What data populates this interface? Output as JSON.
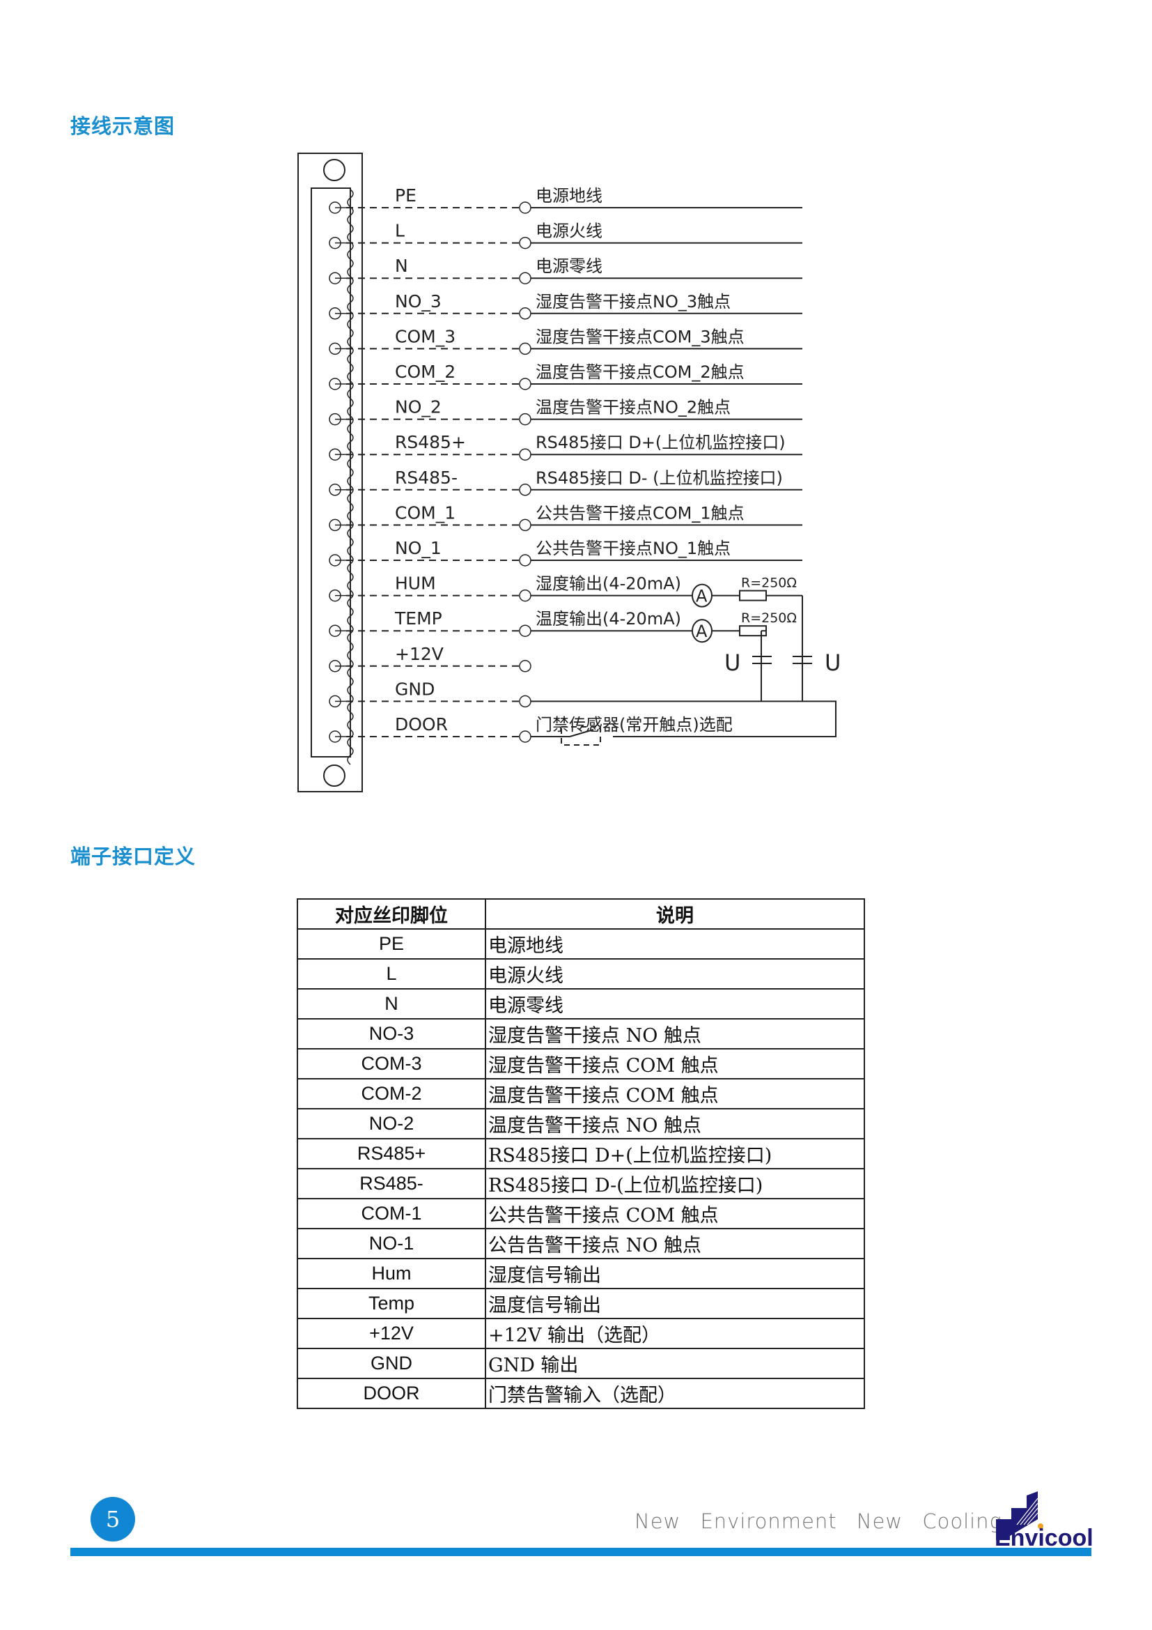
{
  "sections": {
    "wiring_title": "接线示意图",
    "table_title": "端子接口定义"
  },
  "diagram": {
    "pins": [
      {
        "pin": "PE",
        "desc": "电源地线"
      },
      {
        "pin": "L",
        "desc": "电源火线"
      },
      {
        "pin": "N",
        "desc": "电源零线"
      },
      {
        "pin": "NO_3",
        "desc": "湿度告警干接点NO_3触点"
      },
      {
        "pin": "COM_3",
        "desc": "湿度告警干接点COM_3触点"
      },
      {
        "pin": "COM_2",
        "desc": "温度告警干接点COM_2触点"
      },
      {
        "pin": "NO_2",
        "desc": "温度告警干接点NO_2触点"
      },
      {
        "pin": "RS485+",
        "desc": "RS485接口 D+(上位机监控接口)"
      },
      {
        "pin": "RS485-",
        "desc": "RS485接口 D- (上位机监控接口)"
      },
      {
        "pin": "COM_1",
        "desc": "公共告警干接点COM_1触点"
      },
      {
        "pin": "NO_1",
        "desc": "公共告警干接点NO_1触点"
      },
      {
        "pin": "HUM",
        "desc": "湿度输出(4-20mA)"
      },
      {
        "pin": "TEMP",
        "desc": "温度输出(4-20mA)"
      },
      {
        "pin": "+12V",
        "desc": ""
      },
      {
        "pin": "GND",
        "desc": ""
      },
      {
        "pin": "DOOR",
        "desc": "门禁传感器(常开触点)选配"
      }
    ],
    "ammeter_label": "A",
    "resistor_label": "R=250Ω",
    "voltage_label": "U"
  },
  "table": {
    "headers": [
      "对应丝印脚位",
      "说明"
    ],
    "rows": [
      [
        "PE",
        "电源地线"
      ],
      [
        "L",
        "电源火线"
      ],
      [
        "N",
        "电源零线"
      ],
      [
        "NO-3",
        "湿度告警干接点 NO 触点"
      ],
      [
        "COM-3",
        "湿度告警干接点 COM 触点"
      ],
      [
        "COM-2",
        "温度告警干接点 COM 触点"
      ],
      [
        "NO-2",
        "温度告警干接点 NO 触点"
      ],
      [
        "RS485+",
        "RS485接口 D+(上位机监控接口)"
      ],
      [
        "RS485-",
        "RS485接口 D-(上位机监控接口)"
      ],
      [
        "COM-1",
        "公共告警干接点 COM 触点"
      ],
      [
        "NO-1",
        "公告告警干接点 NO 触点"
      ],
      [
        "Hum",
        "湿度信号输出"
      ],
      [
        "Temp",
        "温度信号输出"
      ],
      [
        "+12V",
        "+12V 输出（选配）"
      ],
      [
        "GND",
        "GND 输出"
      ],
      [
        "DOOR",
        "门禁告警输入（选配）"
      ]
    ]
  },
  "footer": {
    "page_number": "5",
    "slogan": "New Environment New Cooling",
    "logo_text": "Envicool",
    "accent_color": "#0b8bd6",
    "logo_color": "#1e1a78"
  }
}
